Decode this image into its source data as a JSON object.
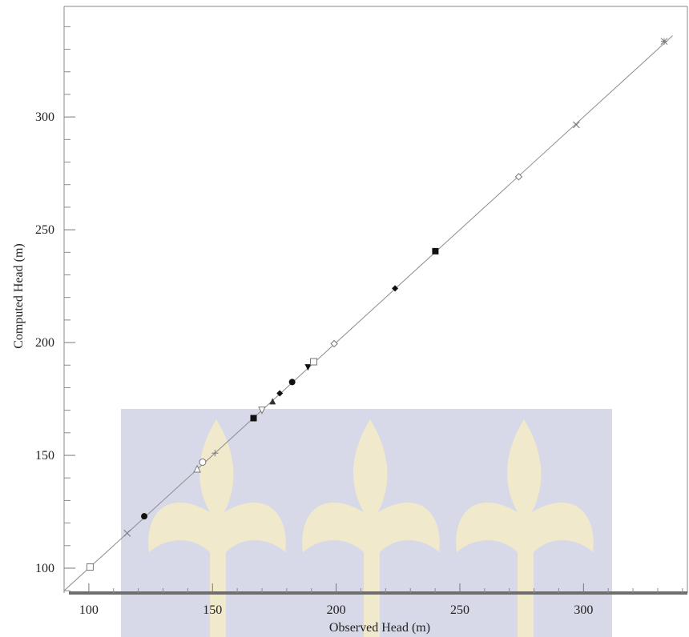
{
  "chart_data": {
    "type": "scatter",
    "title": "",
    "xlabel": "Observed Head (m)",
    "ylabel": "Computed Head (m)",
    "xlim": [
      90,
      342
    ],
    "ylim": [
      89,
      349
    ],
    "x_ticks": [
      100,
      150,
      200,
      250,
      300
    ],
    "y_ticks": [
      100,
      150,
      200,
      250,
      300
    ],
    "x_minor_step": 10,
    "y_minor_step": 10,
    "grid": false,
    "reference_line": {
      "type": "y=x",
      "from": 90,
      "to": 336
    },
    "points": [
      {
        "x": 100.5,
        "y": 100.5,
        "marker": "square-open"
      },
      {
        "x": 115.5,
        "y": 115.5,
        "marker": "x"
      },
      {
        "x": 122.4,
        "y": 123.0,
        "marker": "circle-filled"
      },
      {
        "x": 143.8,
        "y": 144.0,
        "marker": "triangle-up-open"
      },
      {
        "x": 146.0,
        "y": 147.0,
        "marker": "circle-open"
      },
      {
        "x": 151.0,
        "y": 151.0,
        "marker": "plus"
      },
      {
        "x": 166.6,
        "y": 166.5,
        "marker": "square-filled"
      },
      {
        "x": 170.0,
        "y": 170.0,
        "marker": "triangle-down-open"
      },
      {
        "x": 174.3,
        "y": 174.0,
        "marker": "triangle-up-filled"
      },
      {
        "x": 177.2,
        "y": 177.5,
        "marker": "diamond-filled"
      },
      {
        "x": 182.2,
        "y": 182.5,
        "marker": "circle-filled"
      },
      {
        "x": 188.6,
        "y": 189.0,
        "marker": "triangle-down-filled"
      },
      {
        "x": 190.9,
        "y": 191.5,
        "marker": "square-open"
      },
      {
        "x": 199.2,
        "y": 199.5,
        "marker": "diamond-open"
      },
      {
        "x": 223.8,
        "y": 224.0,
        "marker": "diamond-filled"
      },
      {
        "x": 240.1,
        "y": 240.5,
        "marker": "square-filled"
      },
      {
        "x": 273.8,
        "y": 273.5,
        "marker": "diamond-open"
      },
      {
        "x": 297.1,
        "y": 296.5,
        "marker": "x"
      },
      {
        "x": 332.6,
        "y": 333.5,
        "marker": "asterisk"
      }
    ]
  }
}
